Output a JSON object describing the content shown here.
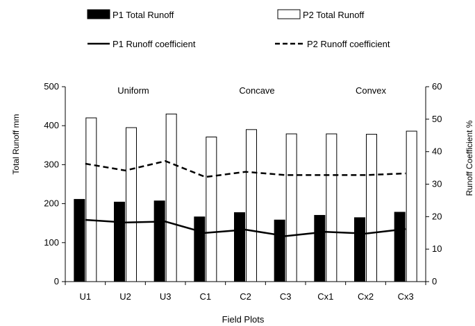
{
  "chart_data": {
    "type": "bar",
    "xlabel": "Field Plots",
    "ylabel_left": "Total Runoff mm",
    "ylabel_right": "Runoff Coefficient  %",
    "ylim_left": [
      0,
      500
    ],
    "ylim_right": [
      0,
      60
    ],
    "yticks_left": [
      "0",
      "100",
      "200",
      "300",
      "400",
      "500"
    ],
    "yticks_right": [
      "0",
      "10",
      "20",
      "30",
      "40",
      "50",
      "60"
    ],
    "grid": false,
    "legend_position": "top",
    "categories": [
      "U1",
      "U2",
      "U3",
      "C1",
      "C2",
      "C3",
      "Cx1",
      "Cx2",
      "Cx3"
    ],
    "group_labels": [
      "Uniform",
      "Concave",
      "Convex"
    ],
    "series": [
      {
        "name": "P1 Total Runoff",
        "kind": "bar",
        "axis": "left",
        "color": "#000000",
        "values": [
          211,
          204,
          207,
          166,
          177,
          158,
          170,
          164,
          178
        ]
      },
      {
        "name": "P2 Total Runoff",
        "kind": "bar",
        "axis": "left",
        "color": "#ffffff",
        "values": [
          420,
          395,
          430,
          371,
          390,
          379,
          379,
          378,
          386
        ]
      },
      {
        "name": "P1 Runoff coefficient",
        "kind": "line",
        "axis": "right",
        "style": "solid",
        "values": [
          19.0,
          18.2,
          18.5,
          15.0,
          16.0,
          14.0,
          15.3,
          14.8,
          16.2
        ]
      },
      {
        "name": "P2 Runoff coefficient",
        "kind": "line",
        "axis": "right",
        "style": "dashed",
        "values": [
          36.3,
          34.2,
          37.1,
          32.2,
          33.8,
          32.8,
          32.8,
          32.8,
          33.3
        ]
      }
    ]
  }
}
